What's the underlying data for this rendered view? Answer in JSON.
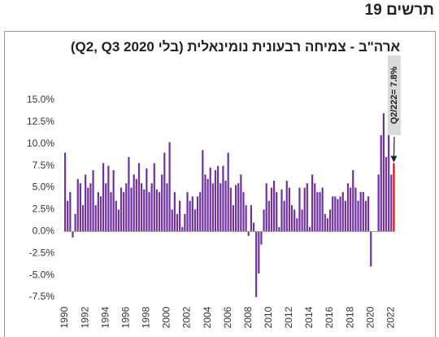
{
  "header": {
    "title": "תרשים 19"
  },
  "chart_data": {
    "type": "bar",
    "title": "ארה\"ב - צמיחה רבעונית נומינאלית (בלי Q2, Q3 2020)",
    "categories": [
      "1990",
      null,
      null,
      null,
      null,
      null,
      null,
      null,
      "1992",
      null,
      null,
      null,
      null,
      null,
      null,
      null,
      "1994",
      null,
      null,
      null,
      null,
      null,
      null,
      null,
      "1996",
      null,
      null,
      null,
      null,
      null,
      null,
      null,
      "1998",
      null,
      null,
      null,
      null,
      null,
      null,
      null,
      "2000",
      null,
      null,
      null,
      null,
      null,
      null,
      null,
      "2002",
      null,
      null,
      null,
      null,
      null,
      null,
      null,
      "2004",
      null,
      null,
      null,
      null,
      null,
      null,
      null,
      "2006",
      null,
      null,
      null,
      null,
      null,
      null,
      null,
      "2008",
      null,
      null,
      null,
      null,
      null,
      null,
      null,
      "2010",
      null,
      null,
      null,
      null,
      null,
      null,
      null,
      "2012",
      null,
      null,
      null,
      null,
      null,
      null,
      null,
      "2014",
      null,
      null,
      null,
      null,
      null,
      null,
      null,
      "2016",
      null,
      null,
      null,
      null,
      null,
      null,
      null,
      "2018",
      null,
      null,
      null,
      null,
      null,
      null,
      null,
      "2020",
      null,
      null,
      null,
      null,
      null,
      null,
      null,
      "2022",
      null
    ],
    "values": [
      9.0,
      3.5,
      4.5,
      -0.7,
      2.0,
      6.0,
      5.5,
      3.0,
      6.5,
      5.0,
      5.5,
      7.0,
      3.0,
      4.5,
      4.0,
      7.8,
      5.5,
      7.5,
      4.5,
      7.0,
      3.5,
      2.5,
      5.0,
      4.5,
      5.5,
      8.5,
      5.0,
      6.5,
      6.0,
      7.8,
      5.5,
      4.8,
      7.2,
      4.5,
      5.5,
      7.8,
      4.8,
      4.5,
      6.5,
      9.0,
      5.5,
      10.2,
      2.5,
      4.5,
      2.0,
      3.5,
      0.5,
      2.0,
      4.5,
      3.5,
      4.0,
      2.5,
      4.0,
      4.5,
      9.3,
      6.5,
      6.0,
      7.3,
      5.5,
      7.0,
      7.5,
      5.5,
      7.5,
      5.8,
      9.0,
      5.0,
      3.0,
      5.3,
      5.5,
      6.5,
      4.5,
      3.0,
      -0.5,
      3.0,
      1.0,
      -7.5,
      -4.8,
      -1.5,
      2.5,
      5.5,
      3.5,
      5.0,
      5.8,
      4.5,
      0.5,
      4.8,
      3.5,
      5.8,
      5.0,
      3.0,
      2.5,
      1.5,
      5.0,
      2.5,
      5.0,
      5.5,
      0.5,
      6.5,
      5.5,
      4.5,
      4.5,
      5.0,
      2.0,
      1.5,
      2.5,
      4.0,
      4.0,
      3.7,
      4.0,
      4.5,
      3.5,
      5.5,
      5.0,
      7.0,
      5.0,
      3.5,
      4.5,
      4.5,
      3.5,
      4.0,
      -4.0,
      null,
      null,
      6.5,
      11.0,
      13.5,
      8.5,
      14.5,
      6.5,
      7.8
    ],
    "color": "#7030a0",
    "last_color": "#ff0000",
    "annotation": "Q2/222= 7.8%",
    "ylim": [
      -7.5,
      15
    ],
    "yticks": [
      {
        "value": 15,
        "label": "15.0%"
      },
      {
        "value": 12.5,
        "label": "12.5%"
      },
      {
        "value": 10,
        "label": "10.0%"
      },
      {
        "value": 7.5,
        "label": "7.5%"
      },
      {
        "value": 5,
        "label": "5.0%"
      },
      {
        "value": 2.5,
        "label": "2.5%"
      },
      {
        "value": 0,
        "label": "0.0%"
      },
      {
        "value": -2.5,
        "label": "-2.5%"
      },
      {
        "value": -5,
        "label": "-5.0%"
      },
      {
        "value": -7.5,
        "label": "-7.5%"
      }
    ],
    "grid": false
  }
}
